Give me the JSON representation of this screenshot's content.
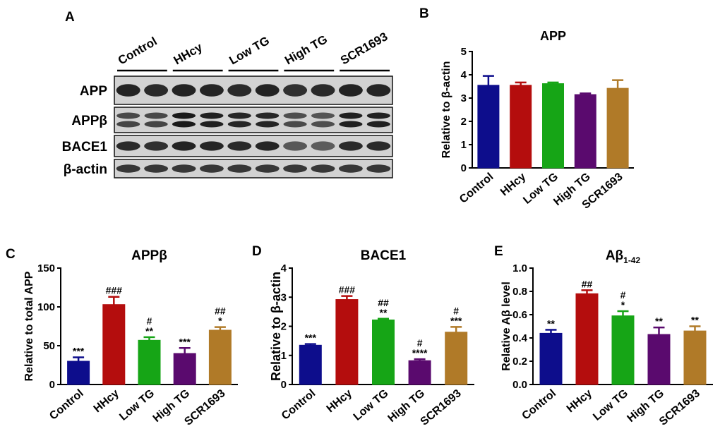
{
  "panel_letters": [
    "A",
    "B",
    "C",
    "D",
    "E"
  ],
  "colors": [
    "#0d0d8c",
    "#b40d0d",
    "#16a516",
    "#5a0a6e",
    "#b07a28"
  ],
  "blot": {
    "groups": [
      "Control",
      "HHcy",
      "Low TG",
      "High TG",
      "SCR1693"
    ],
    "rows": [
      "APP",
      "APPβ",
      "BACE1",
      "β-actin"
    ],
    "lanes_per_group": 2
  },
  "chart_data": [
    {
      "type": "bar",
      "panel": "B",
      "title": "APP",
      "title_sub": "",
      "ylabel": "Relative to β-actin",
      "categories": [
        "Control",
        "HHcy",
        "Low TG",
        "High TG",
        "SCR1693"
      ],
      "values": [
        3.55,
        3.55,
        3.62,
        3.15,
        3.42
      ],
      "errors": [
        0.4,
        0.12,
        0.05,
        0.05,
        0.35
      ],
      "annotations": [
        [],
        [],
        [],
        [],
        []
      ],
      "ylim": [
        0,
        5
      ],
      "yticks": [
        "0",
        "1",
        "2",
        "3",
        "4",
        "5"
      ]
    },
    {
      "type": "bar",
      "panel": "C",
      "title": "APPβ",
      "title_sub": "",
      "ylabel": "Relative to total APP",
      "categories": [
        "Control",
        "HHcy",
        "Low TG",
        "High TG",
        "SCR1693"
      ],
      "values": [
        30,
        103,
        57,
        40,
        70
      ],
      "errors": [
        5,
        10,
        4,
        7,
        4
      ],
      "annotations": [
        [
          "***"
        ],
        [
          "###"
        ],
        [
          "#",
          "**"
        ],
        [
          "***"
        ],
        [
          "##",
          "*"
        ]
      ],
      "ylim": [
        0,
        150
      ],
      "yticks": [
        "0",
        "50",
        "100",
        "150"
      ]
    },
    {
      "type": "bar",
      "panel": "D",
      "title": "BACE1",
      "title_sub": "",
      "ylabel": "Relative to β-actin",
      "categories": [
        "Control",
        "HHcy",
        "Low TG",
        "High TG",
        "SCR1693"
      ],
      "values": [
        1.35,
        2.92,
        2.22,
        0.82,
        1.8
      ],
      "errors": [
        0.04,
        0.12,
        0.04,
        0.05,
        0.18
      ],
      "annotations": [
        [
          "***"
        ],
        [
          "###"
        ],
        [
          "##",
          "**"
        ],
        [
          "#",
          "****"
        ],
        [
          "#",
          "***"
        ]
      ],
      "ylim": [
        0,
        4
      ],
      "yticks": [
        "0",
        "1",
        "2",
        "3",
        "4"
      ]
    },
    {
      "type": "bar",
      "panel": "E",
      "title": "Aβ",
      "title_sub": "1-42",
      "ylabel": "Relative Aβ level",
      "categories": [
        "Control",
        "HHcy",
        "Low TG",
        "High TG",
        "SCR1693"
      ],
      "values": [
        0.44,
        0.78,
        0.59,
        0.43,
        0.46
      ],
      "errors": [
        0.03,
        0.03,
        0.04,
        0.06,
        0.04
      ],
      "annotations": [
        [
          "**"
        ],
        [
          "##"
        ],
        [
          "#",
          "*"
        ],
        [
          "**"
        ],
        [
          "**"
        ]
      ],
      "ylim": [
        0,
        1.0
      ],
      "yticks": [
        "0.0",
        "0.2",
        "0.4",
        "0.6",
        "0.8",
        "1.0"
      ]
    }
  ]
}
